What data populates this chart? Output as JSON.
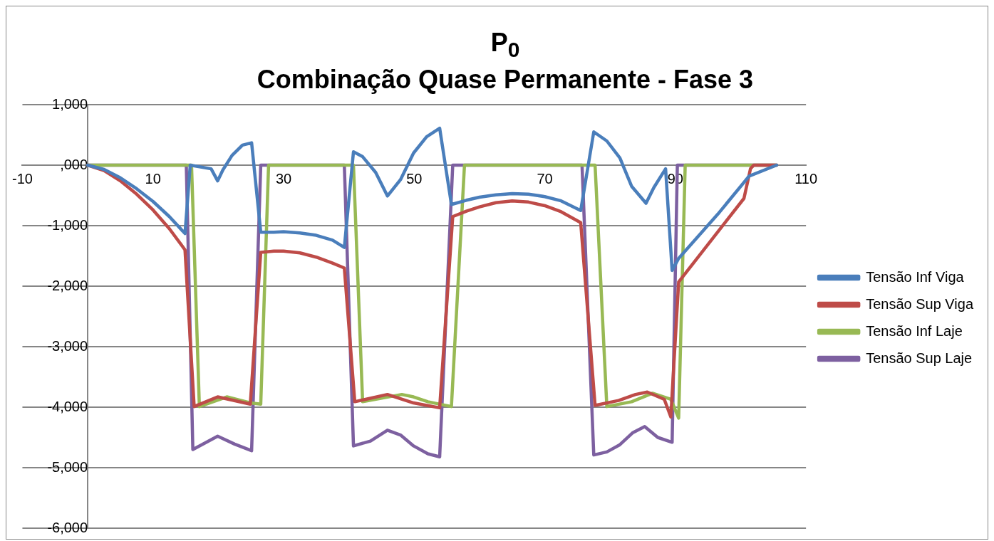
{
  "chart_data": {
    "type": "line",
    "title": "P$_{0}$",
    "subtitle": "Combinação Quase Permanente - Fase 3",
    "xlim": [
      -10,
      110
    ],
    "xticks": [
      -10,
      10,
      30,
      50,
      70,
      90,
      110
    ],
    "ylim": [
      -6000,
      1000
    ],
    "yticks": [
      {
        "value": -6000,
        "label": "-6,000"
      },
      {
        "value": -5000,
        "label": "-5,000"
      },
      {
        "value": -4000,
        "label": "-4,000"
      },
      {
        "value": -3000,
        "label": "-3,000"
      },
      {
        "value": -2000,
        "label": "-2,000"
      },
      {
        "value": -1000,
        "label": "-1,000"
      },
      {
        "value": 0,
        "label": ",000"
      },
      {
        "value": 1000,
        "label": "1,000"
      }
    ],
    "grid": "y",
    "legend": "right",
    "marker": "none",
    "line_style": "solid",
    "series": [
      {
        "name": "Tensão Inf Viga",
        "color": "#4a7ebb",
        "x": [
          0,
          2.5,
          5,
          7.5,
          10,
          12.5,
          14.9,
          15.7,
          18.9,
          19.9,
          20.7,
          22.1,
          23.7,
          25.1,
          26.5,
          28.5,
          30,
          32.5,
          35,
          37.5,
          39.3,
          40.7,
          42.1,
          44.1,
          45.9,
          47.9,
          49.9,
          51.9,
          53.9,
          55.7,
          58,
          60,
          62.5,
          65,
          67.5,
          70,
          72.5,
          75.5,
          77.5,
          79.5,
          81.5,
          83.3,
          85.5,
          86.7,
          88.5,
          89.5,
          90.5,
          96.5,
          101.3,
          105.5
        ],
        "values": [
          0,
          -70,
          -210,
          -390,
          -600,
          -850,
          -1130,
          0,
          -60,
          -260,
          -80,
          160,
          330,
          370,
          -1110,
          -1110,
          -1100,
          -1120,
          -1160,
          -1240,
          -1360,
          220,
          140,
          -120,
          -510,
          -240,
          200,
          470,
          610,
          -650,
          -580,
          -530,
          -490,
          -470,
          -480,
          -520,
          -590,
          -750,
          550,
          400,
          120,
          -350,
          -630,
          -370,
          -60,
          -1740,
          -1540,
          -810,
          -180,
          0
        ]
      },
      {
        "name": "Tensão Sup Viga",
        "color": "#be4b48",
        "x": [
          0,
          2.5,
          5,
          7.5,
          10,
          12.5,
          14.9,
          16.3,
          19.9,
          24.9,
          26.5,
          28.5,
          30,
          32.5,
          35,
          37.5,
          39.3,
          40.9,
          45.9,
          49.9,
          53.9,
          55.9,
          58,
          60,
          62.5,
          65,
          67.5,
          70,
          72.5,
          75.5,
          77.7,
          81.3,
          83.9,
          85.7,
          88.3,
          89.3,
          90.5,
          100.5,
          101.5,
          102,
          105.5
        ],
        "values": [
          0,
          -90,
          -260,
          -480,
          -740,
          -1050,
          -1400,
          -3990,
          -3830,
          -3950,
          -1440,
          -1420,
          -1420,
          -1450,
          -1520,
          -1620,
          -1700,
          -3910,
          -3790,
          -3930,
          -4010,
          -850,
          -760,
          -690,
          -620,
          -590,
          -610,
          -670,
          -770,
          -950,
          -3970,
          -3890,
          -3790,
          -3750,
          -3870,
          -4160,
          -1930,
          -550,
          -60,
          0,
          0
        ]
      },
      {
        "name": "Tensão Inf Laje",
        "color": "#98b954",
        "x": [
          0,
          15.9,
          17.1,
          21.3,
          24.9,
          26.5,
          27.7,
          40.7,
          42.1,
          48.1,
          49.9,
          52.1,
          55.7,
          57.7,
          77.7,
          79.5,
          83.3,
          86.5,
          89.3,
          90.5,
          91.5,
          105.5
        ],
        "values": [
          0,
          0,
          -3990,
          -3830,
          -3930,
          -3950,
          0,
          0,
          -3910,
          -3790,
          -3830,
          -3910,
          -3990,
          0,
          0,
          -3990,
          -3910,
          -3770,
          -3870,
          -4180,
          0,
          0
        ]
      },
      {
        "name": "Tensão Sup Laje",
        "color": "#7d60a0",
        "x": [
          0,
          15.1,
          16.1,
          19.9,
          22.5,
          25.1,
          26.5,
          39.3,
          40.7,
          43.3,
          45.9,
          47.9,
          49.9,
          52.1,
          53.9,
          55.9,
          75.7,
          77.5,
          79.5,
          81.5,
          83.5,
          85.3,
          87.3,
          89.5,
          90.3,
          105.5
        ],
        "values": [
          0,
          0,
          -4700,
          -4480,
          -4610,
          -4720,
          0,
          0,
          -4640,
          -4560,
          -4380,
          -4460,
          -4640,
          -4770,
          -4820,
          0,
          0,
          -4790,
          -4740,
          -4620,
          -4420,
          -4320,
          -4500,
          -4580,
          0,
          0
        ]
      }
    ]
  }
}
